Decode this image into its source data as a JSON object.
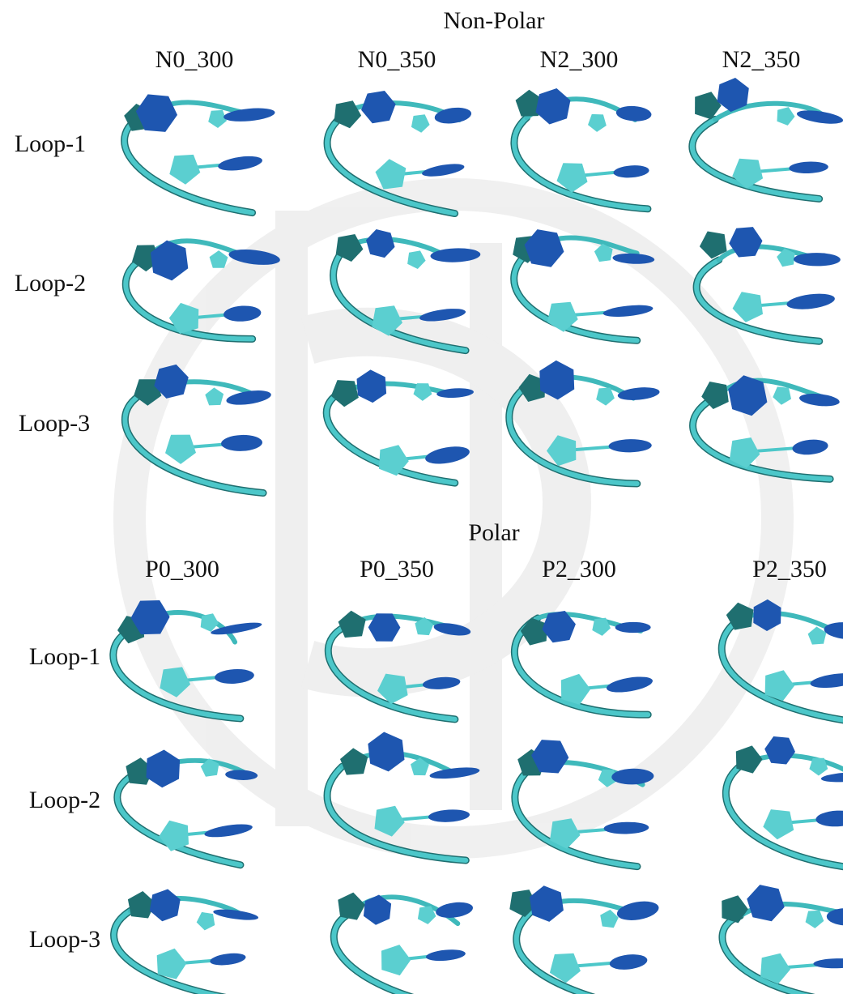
{
  "sections": [
    {
      "title": "Non-Polar",
      "columns": [
        "N0_300",
        "N0_350",
        "N2_300",
        "N2_350"
      ],
      "rows": [
        "Loop-1",
        "Loop-2",
        "Loop-3"
      ]
    },
    {
      "title": "Polar",
      "columns": [
        "P0_300",
        "P0_350",
        "P2_300",
        "P2_350"
      ],
      "rows": [
        "Loop-1",
        "Loop-2",
        "Loop-3"
      ]
    }
  ]
}
